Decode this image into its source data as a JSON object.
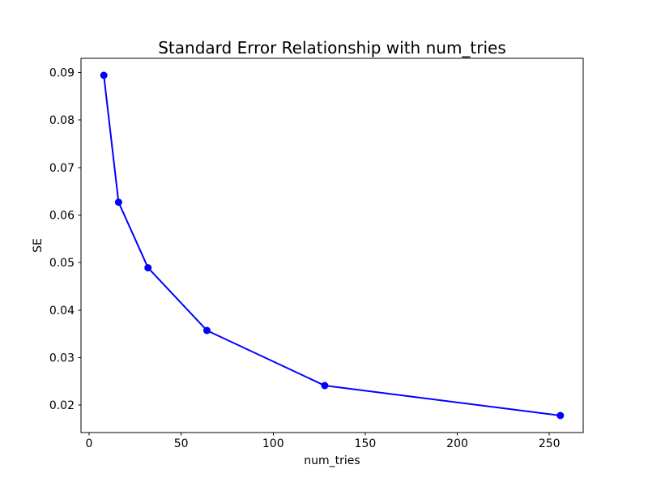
{
  "figure": {
    "title": "Standard Error Relationship with num_tries",
    "xlabel": "num_tries",
    "ylabel": "SE",
    "background_color": "#ffffff",
    "plot_background_color": "#ffffff",
    "axis_color": "#000000",
    "line_color": "#0000ff"
  },
  "chart_data": {
    "type": "line",
    "title": "Standard Error Relationship with num_tries",
    "xlabel": "num_tries",
    "ylabel": "SE",
    "series": [
      {
        "name": "SE",
        "x": [
          8,
          16,
          32,
          64,
          128,
          256
        ],
        "y": [
          0.0894,
          0.0627,
          0.0489,
          0.0357,
          0.0241,
          0.0178
        ],
        "color": "#0000ff",
        "marker": "o",
        "marker_size": 9,
        "line_width": 2,
        "linestyle": "solid"
      }
    ],
    "xlim": [
      -4.4,
      268.4
    ],
    "ylim": [
      0.01422,
      0.09298
    ],
    "xticks": [
      0,
      50,
      100,
      150,
      200,
      250
    ],
    "yticks": [
      0.02,
      0.03,
      0.04,
      0.05,
      0.06,
      0.07,
      0.08,
      0.09
    ],
    "xtick_labels": [
      "0",
      "50",
      "100",
      "150",
      "200",
      "250"
    ],
    "ytick_labels": [
      "0.02",
      "0.03",
      "0.04",
      "0.05",
      "0.06",
      "0.07",
      "0.08",
      "0.09"
    ],
    "grid": false,
    "legend": null,
    "layout_hints": {
      "full_axes_box": true,
      "ticks_direction": "out"
    }
  }
}
